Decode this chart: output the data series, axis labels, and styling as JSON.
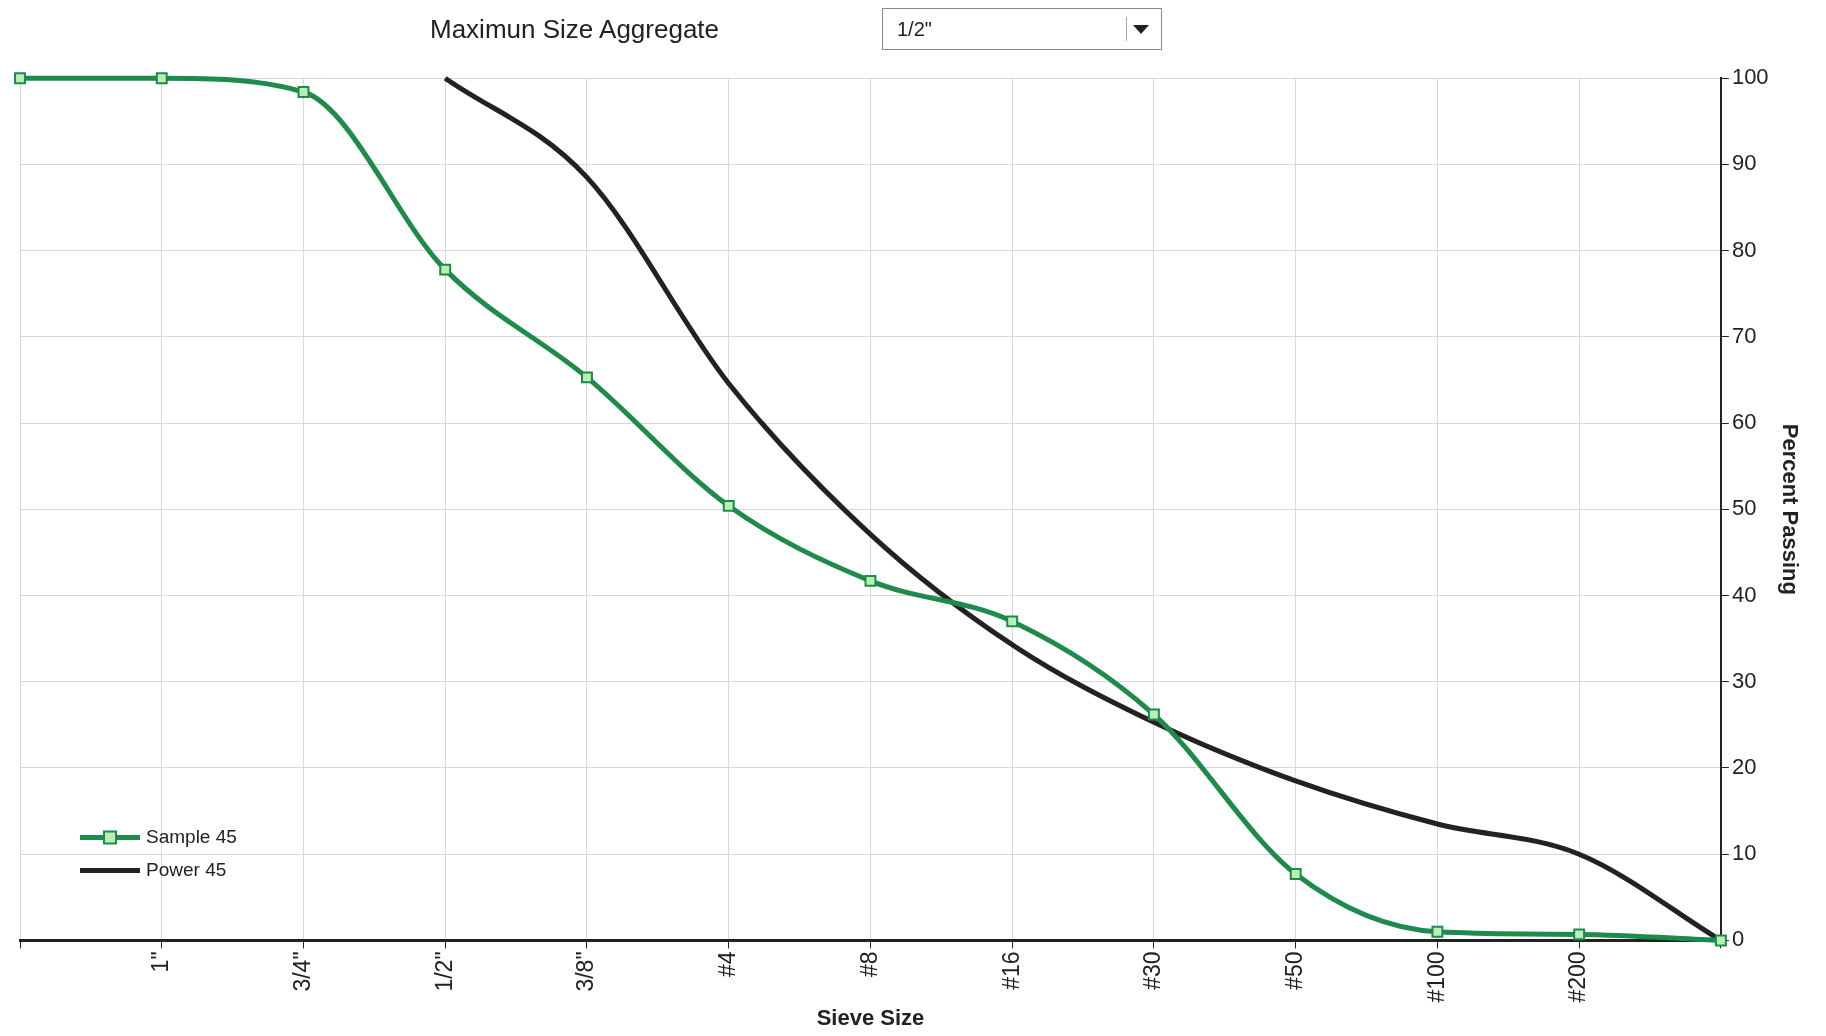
{
  "chart_data": {
    "type": "line",
    "title": "Maximun Size Aggregate",
    "subtitle": "1/2\"",
    "xlabel": "Sieve Size",
    "ylabel": "Percent Passing",
    "categories": [
      null,
      "1\"",
      "3/4\"",
      "1/2\"",
      "3/8\"",
      "#4",
      "#8",
      "#16",
      "#30",
      "#50",
      "#100",
      "#200",
      null
    ],
    "ylim": [
      0,
      100
    ],
    "yticks": [
      0,
      10,
      20,
      30,
      40,
      50,
      60,
      70,
      80,
      90,
      100
    ],
    "grid": true,
    "legend": "bottom left",
    "series": [
      {
        "name": "Sample 45",
        "color": "#1e8a4c",
        "marker": "square",
        "values": [
          100,
          100,
          98.4,
          77.8,
          65.3,
          50.4,
          41.7,
          37,
          26.2,
          7.7,
          1,
          0.7,
          0
        ]
      },
      {
        "name": "Power 45",
        "color": "#222222",
        "marker": "none",
        "values": [
          null,
          null,
          null,
          100,
          88.5,
          64.6,
          47.1,
          34.3,
          25.3,
          18.5,
          13.5,
          10,
          0
        ]
      }
    ]
  }
}
